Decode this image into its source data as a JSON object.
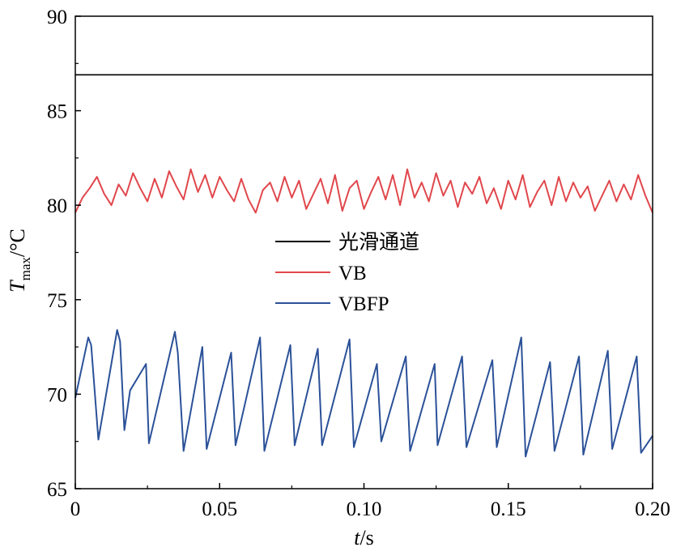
{
  "chart_data": {
    "type": "line",
    "xlabel_var": "t",
    "xlabel_unit": "/s",
    "ylabel_var": "T",
    "ylabel_sub": "max",
    "ylabel_unit": "/°C",
    "xlim": [
      0,
      0.2
    ],
    "ylim": [
      65,
      90
    ],
    "x_ticks": [
      0,
      0.05,
      0.1,
      0.15,
      0.2
    ],
    "x_tick_labels": [
      "0",
      "0.05",
      "0.10",
      "0.15",
      "0.20"
    ],
    "y_ticks": [
      65,
      70,
      75,
      80,
      85,
      90
    ],
    "y_tick_labels": [
      "65",
      "70",
      "75",
      "80",
      "85",
      "90"
    ],
    "grid": false,
    "legend_position": "center",
    "series": [
      {
        "name": "光滑通道",
        "color": "#000000",
        "x": [
          0,
          0.2
        ],
        "y": [
          86.9,
          86.9
        ]
      },
      {
        "name": "VB",
        "color": "#e0474c",
        "x": [
          0,
          0.0025,
          0.005,
          0.0075,
          0.01,
          0.0125,
          0.015,
          0.0175,
          0.02,
          0.0225,
          0.025,
          0.0275,
          0.03,
          0.0325,
          0.035,
          0.0375,
          0.04,
          0.0425,
          0.045,
          0.0475,
          0.05,
          0.0525,
          0.055,
          0.0575,
          0.06,
          0.0625,
          0.065,
          0.0675,
          0.07,
          0.0725,
          0.075,
          0.0775,
          0.08,
          0.0825,
          0.085,
          0.0875,
          0.09,
          0.0925,
          0.095,
          0.0975,
          0.1,
          0.1025,
          0.105,
          0.1075,
          0.11,
          0.1125,
          0.115,
          0.1175,
          0.12,
          0.1225,
          0.125,
          0.1275,
          0.13,
          0.1325,
          0.135,
          0.1375,
          0.14,
          0.1425,
          0.145,
          0.1475,
          0.15,
          0.1525,
          0.155,
          0.1575,
          0.16,
          0.1625,
          0.165,
          0.1675,
          0.17,
          0.1725,
          0.175,
          0.1775,
          0.18,
          0.1825,
          0.185,
          0.1875,
          0.19,
          0.1925,
          0.195,
          0.1975,
          0.2
        ],
        "y": [
          79.6,
          80.4,
          80.9,
          81.5,
          80.6,
          80.0,
          81.1,
          80.5,
          81.7,
          80.9,
          80.2,
          81.4,
          80.4,
          81.8,
          81.0,
          80.3,
          81.9,
          80.7,
          81.6,
          80.4,
          81.5,
          80.8,
          80.2,
          81.4,
          80.3,
          79.6,
          80.8,
          81.2,
          80.2,
          81.5,
          80.4,
          81.3,
          79.8,
          80.6,
          81.4,
          80.1,
          81.6,
          79.7,
          80.9,
          81.3,
          79.8,
          80.7,
          81.5,
          80.3,
          81.6,
          80.0,
          81.9,
          80.4,
          81.2,
          80.2,
          81.7,
          80.5,
          81.3,
          79.9,
          81.2,
          80.6,
          81.5,
          80.1,
          80.9,
          79.8,
          81.3,
          80.3,
          81.6,
          79.9,
          80.7,
          81.3,
          80.0,
          81.5,
          80.2,
          81.2,
          80.4,
          81.0,
          79.7,
          80.5,
          81.3,
          80.2,
          81.1,
          80.3,
          81.6,
          80.5,
          79.6
        ]
      },
      {
        "name": "VBFP",
        "color": "#2b5198",
        "x": [
          0,
          0.0045,
          0.0055,
          0.008,
          0.0145,
          0.0155,
          0.017,
          0.019,
          0.0245,
          0.0255,
          0.0345,
          0.0355,
          0.0375,
          0.044,
          0.0455,
          0.054,
          0.0555,
          0.064,
          0.0655,
          0.0745,
          0.076,
          0.084,
          0.0855,
          0.095,
          0.0965,
          0.1045,
          0.106,
          0.1145,
          0.116,
          0.1245,
          0.1255,
          0.134,
          0.1355,
          0.1445,
          0.146,
          0.1545,
          0.156,
          0.1645,
          0.166,
          0.1745,
          0.176,
          0.1845,
          0.186,
          0.1945,
          0.196,
          0.2
        ],
        "y": [
          69.8,
          73.0,
          72.6,
          67.6,
          73.4,
          72.8,
          68.1,
          70.2,
          71.6,
          67.4,
          73.3,
          72.2,
          67.0,
          72.5,
          67.1,
          72.2,
          67.3,
          73.0,
          67.0,
          72.6,
          67.3,
          72.4,
          67.3,
          72.9,
          67.2,
          71.6,
          67.5,
          72.0,
          67.0,
          71.6,
          67.3,
          72.0,
          67.2,
          71.8,
          67.2,
          73.0,
          66.7,
          71.7,
          67.0,
          72.0,
          66.8,
          72.3,
          67.1,
          72.0,
          66.9,
          67.8
        ]
      }
    ]
  }
}
